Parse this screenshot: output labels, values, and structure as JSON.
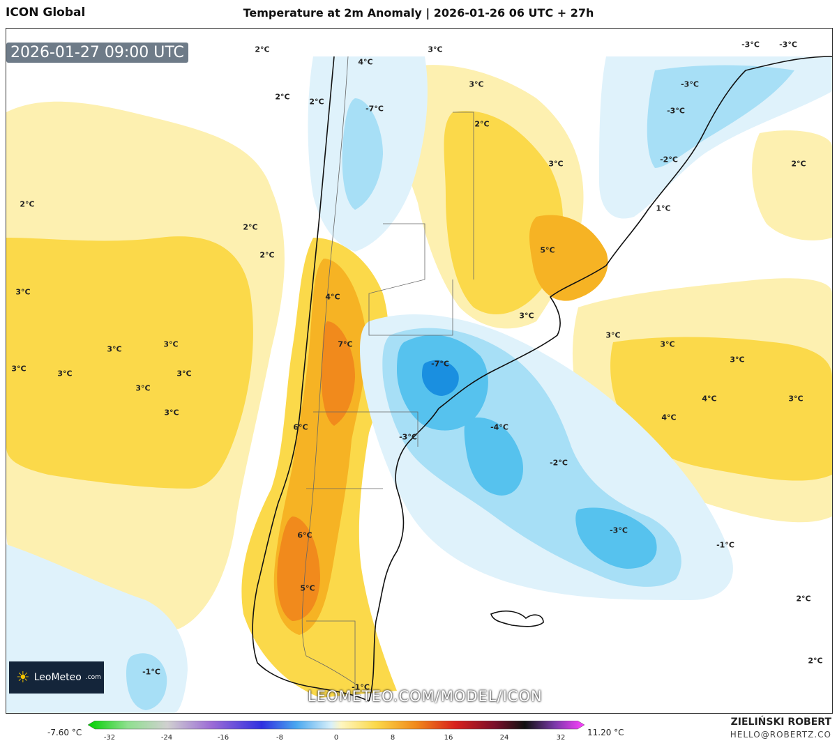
{
  "header": {
    "model": "ICON Global",
    "title": "Temperature at 2m Anomaly | 2026-01-26 06 UTC + 27h"
  },
  "map": {
    "valid_time": "2026-01-27 09:00 UTC",
    "brand": "LeoMeteo",
    "brand_suffix": ".com",
    "watermark": "LEOMETEO.COM/MODEL/ICON",
    "colors": {
      "warm_light": "#fdf0b0",
      "warm_mid": "#fbd94a",
      "warm_strong": "#f6b324",
      "warm_hot": "#f18a1c",
      "cool_light": "#dff2fb",
      "cool_mid": "#a7dff6",
      "cool_strong": "#56c2ee",
      "cool_deep": "#1a8fe0"
    },
    "labels": [
      "2°C",
      "4°C",
      "3°C",
      "2°C",
      "2°C",
      "3°C",
      "-3°C",
      "-3°C",
      "2°C",
      "-3°C",
      "-3°C",
      "3°C",
      "2°C",
      "2°C",
      "-2°C",
      "2°C",
      "1°C",
      "2°C",
      "5°C",
      "3°C",
      "4°C",
      "3°C",
      "3°C",
      "3°C",
      "7°C",
      "3°C",
      "3°C",
      "-7°C",
      "3°C",
      "3°C",
      "3°C",
      "3°C",
      "3°C",
      "3°C",
      "6°C",
      "4°C",
      "3°C",
      "4°C",
      "-3°C",
      "-4°C",
      "-2°C",
      "-3°C",
      "6°C",
      "-1°C",
      "5°C",
      "2°C",
      "-1°C",
      "2°C",
      "-7°C",
      "-1°C"
    ]
  },
  "colorbar": {
    "min_label": "-7.60 °C",
    "max_label": "11.20 °C",
    "ticks": [
      "-32",
      "-24",
      "-16",
      "-8",
      "0",
      "8",
      "16",
      "24",
      "32"
    ]
  },
  "credits": {
    "author": "ZIELIŃSKI ROBERT",
    "email": "HELLO@ROBERTZ.CO"
  }
}
